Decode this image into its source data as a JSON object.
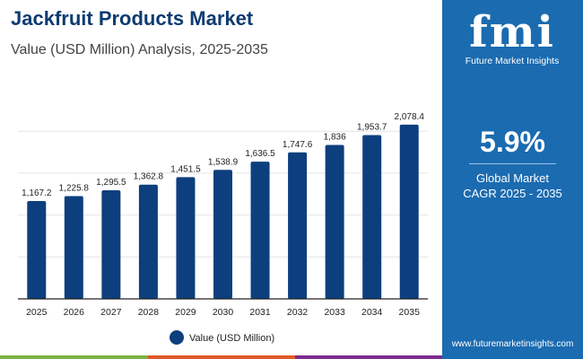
{
  "header": {
    "title": "Jackfruit Products Market",
    "subtitle": "Value (USD Million) Analysis, 2025-2035"
  },
  "panel": {
    "logo_text": "fmi",
    "brand": "Future Market Insights",
    "cagr": "5.9%",
    "cagr_label_1": "Global Market",
    "cagr_label_2": "CAGR 2025 - 2035",
    "url": "www.futuremarketinsights.com"
  },
  "colors": {
    "bar": "#0d3f7e",
    "panel": "#1b6bb0",
    "strip": [
      "#7cb342",
      "#e0592a",
      "#7b2d8e"
    ]
  },
  "chart_data": {
    "type": "bar",
    "categories": [
      "2025",
      "2026",
      "2027",
      "2028",
      "2029",
      "2030",
      "2031",
      "2032",
      "2033",
      "2034",
      "2035"
    ],
    "series": [
      {
        "name": "Value (USD Million)",
        "values": [
          1167.2,
          1225.8,
          1295.5,
          1362.8,
          1451.5,
          1538.9,
          1636.5,
          1747.6,
          1836,
          1953.7,
          2078.4
        ]
      }
    ],
    "labels": [
      "1,167.2",
      "1,225.8",
      "1,295.5",
      "1,362.8",
      "1,451.5",
      "1,538.9",
      "1,636.5",
      "1,747.6",
      "1,836",
      "1,953.7",
      "2,078.4"
    ],
    "ylim": [
      0,
      2000
    ],
    "grid": true,
    "legend": "bottom",
    "yticks_shown": false
  }
}
